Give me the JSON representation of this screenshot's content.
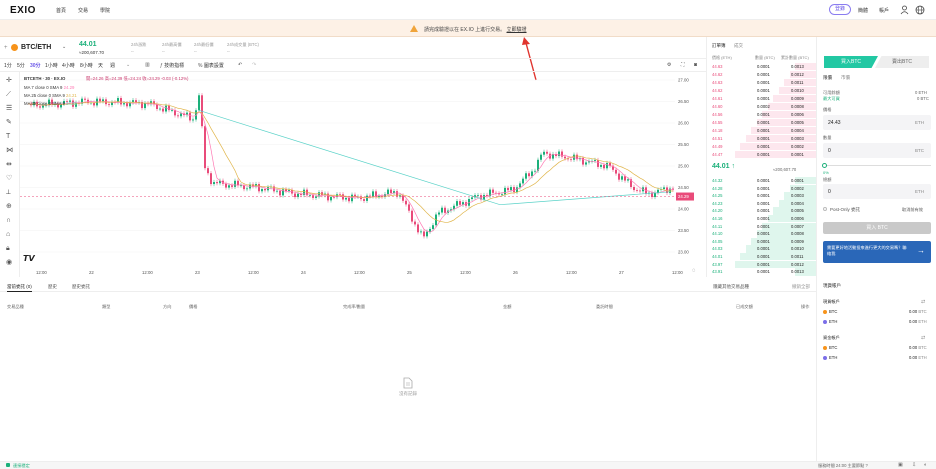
{
  "nav": {
    "logo": "EXIO",
    "items": [
      "首頁",
      "交易",
      "學院"
    ],
    "login": "登錄",
    "lang": "簡體",
    "assets": "帳戶"
  },
  "banner": {
    "text": "請完成驗證以在 EX.IO 上進行交易。",
    "link": "立即驗證"
  },
  "ticker": {
    "pair": "BTC/ETH",
    "price": "44.01",
    "sub": "≈200,607.70",
    "stats": [
      {
        "label": "24h漲跌",
        "value": "--"
      },
      {
        "label": "24h最高價",
        "value": "--"
      },
      {
        "label": "24h最低價",
        "value": "--"
      },
      {
        "label": "24h成交量 (BTC)",
        "value": "--"
      }
    ]
  },
  "toolbar": {
    "intervals": [
      "1分",
      "5分",
      "30分",
      "1小時",
      "4小時",
      "8小時",
      "天",
      "週"
    ],
    "active": "30分",
    "indicators": "技術指標",
    "display": "圖表設置"
  },
  "chart": {
    "symbol": "BTCETH · 30 · EX.IO",
    "ohlc": "開=24.26 高=24.39 低=24.24 收=24.29 -0.03 (-0.12%)",
    "ma": [
      {
        "label": "MA 7 close 0 SMA 9",
        "value": "24.29",
        "color": "#ff7ab4"
      },
      {
        "label": "MA 25 close 0 SMA 9",
        "value": "24.21",
        "color": "#e0b54a"
      },
      {
        "label": "MA 99 close 0 SMA 9",
        "value": "24.25",
        "color": "#5ad2c8"
      }
    ],
    "yticks": [
      "27.00",
      "26.50",
      "26.00",
      "25.50",
      "25.00",
      "24.50",
      "24.00",
      "23.50",
      "23.00"
    ],
    "xticks": [
      "12:00",
      "22",
      "12:00",
      "23",
      "12:00",
      "24",
      "12:00",
      "25",
      "12:00",
      "26",
      "12:00",
      "27",
      "12:00"
    ],
    "last_price_tag": "24.29"
  },
  "bottom": {
    "tabs": [
      "當前委託 (0)",
      "歷史",
      "歷史委託"
    ],
    "links": [
      "隱藏其他交易品種",
      "撤銷全部"
    ],
    "columns": [
      "交易品種",
      "類型",
      "方向",
      "價格",
      "完成率/數量",
      "金額",
      "委託時間",
      "已成交額",
      "操作"
    ],
    "empty": "沒有記錄"
  },
  "orderbook": {
    "tabs": [
      "訂單簿",
      "成交"
    ],
    "headers": [
      "價格 (ETH)",
      "數量 (BTC)",
      "累計數量 (BTC)"
    ],
    "asks": [
      [
        "44.63",
        "0.0001",
        "0.0013"
      ],
      [
        "44.62",
        "0.0001",
        "0.0012"
      ],
      [
        "44.63",
        "0.0001",
        "0.0011"
      ],
      [
        "44.62",
        "0.0001",
        "0.0010"
      ],
      [
        "44.61",
        "0.0001",
        "0.0009"
      ],
      [
        "44.60",
        "0.0002",
        "0.0008"
      ],
      [
        "44.56",
        "0.0001",
        "0.0006"
      ],
      [
        "44.55",
        "0.0001",
        "0.0005"
      ],
      [
        "44.18",
        "0.0001",
        "0.0004"
      ],
      [
        "44.51",
        "0.0001",
        "0.0003"
      ],
      [
        "44.49",
        "0.0001",
        "0.0002"
      ],
      [
        "44.47",
        "0.0001",
        "0.0001"
      ]
    ],
    "mid": {
      "price": "44.01",
      "arrow": "↑",
      "sub": "≈200,607.70"
    },
    "bids": [
      [
        "44.32",
        "0.0001",
        "0.0001"
      ],
      [
        "44.28",
        "0.0001",
        "0.0002"
      ],
      [
        "44.25",
        "0.0001",
        "0.0003"
      ],
      [
        "44.23",
        "0.0001",
        "0.0004"
      ],
      [
        "44.20",
        "0.0001",
        "0.0005"
      ],
      [
        "44.16",
        "0.0001",
        "0.0006"
      ],
      [
        "44.11",
        "0.0001",
        "0.0007"
      ],
      [
        "44.10",
        "0.0001",
        "0.0008"
      ],
      [
        "44.05",
        "0.0001",
        "0.0009"
      ],
      [
        "44.03",
        "0.0001",
        "0.0010"
      ],
      [
        "44.01",
        "0.0001",
        "0.0011"
      ],
      [
        "43.97",
        "0.0001",
        "0.0012"
      ],
      [
        "43.91",
        "0.0001",
        "0.0013"
      ]
    ]
  },
  "trade": {
    "buy": "買入BTC",
    "sell": "賣出BTC",
    "tabs": [
      "限價",
      "市價"
    ],
    "avail_label": "可用餘額",
    "avail_value": "0 ETH",
    "max_label": "最大可買",
    "max_value": "0 BTC",
    "price_label": "價格",
    "price_value": "24.43",
    "price_unit": "ETH",
    "qty_label": "數量",
    "qty_value": "0",
    "qty_unit": "BTC",
    "pct_start": "0%",
    "total_label": "總額",
    "total_value": "0",
    "total_unit": "ETH",
    "postonly": "Post-Only 委託",
    "tif": "取消前有效",
    "submit": "買入 BTC",
    "promo": "需要更好地活動投來進行更大的交易嗎？聯絡我"
  },
  "assets": {
    "title": "現貨帳戶",
    "spot_label": "現貨帳戶",
    "spot": [
      {
        "coin": "BTC",
        "amount": "0.00",
        "unit": "BTC"
      },
      {
        "coin": "ETH",
        "amount": "0.00",
        "unit": "ETH"
      }
    ],
    "margin_label": "資金帳戶",
    "margin": [
      {
        "coin": "BTC",
        "amount": "0.00",
        "unit": "BTC"
      },
      {
        "coin": "ETH",
        "amount": "0.00",
        "unit": "ETH"
      }
    ]
  },
  "status": {
    "left": "連接穩定",
    "right": "服務時間 24:00 主要節點 ?"
  }
}
